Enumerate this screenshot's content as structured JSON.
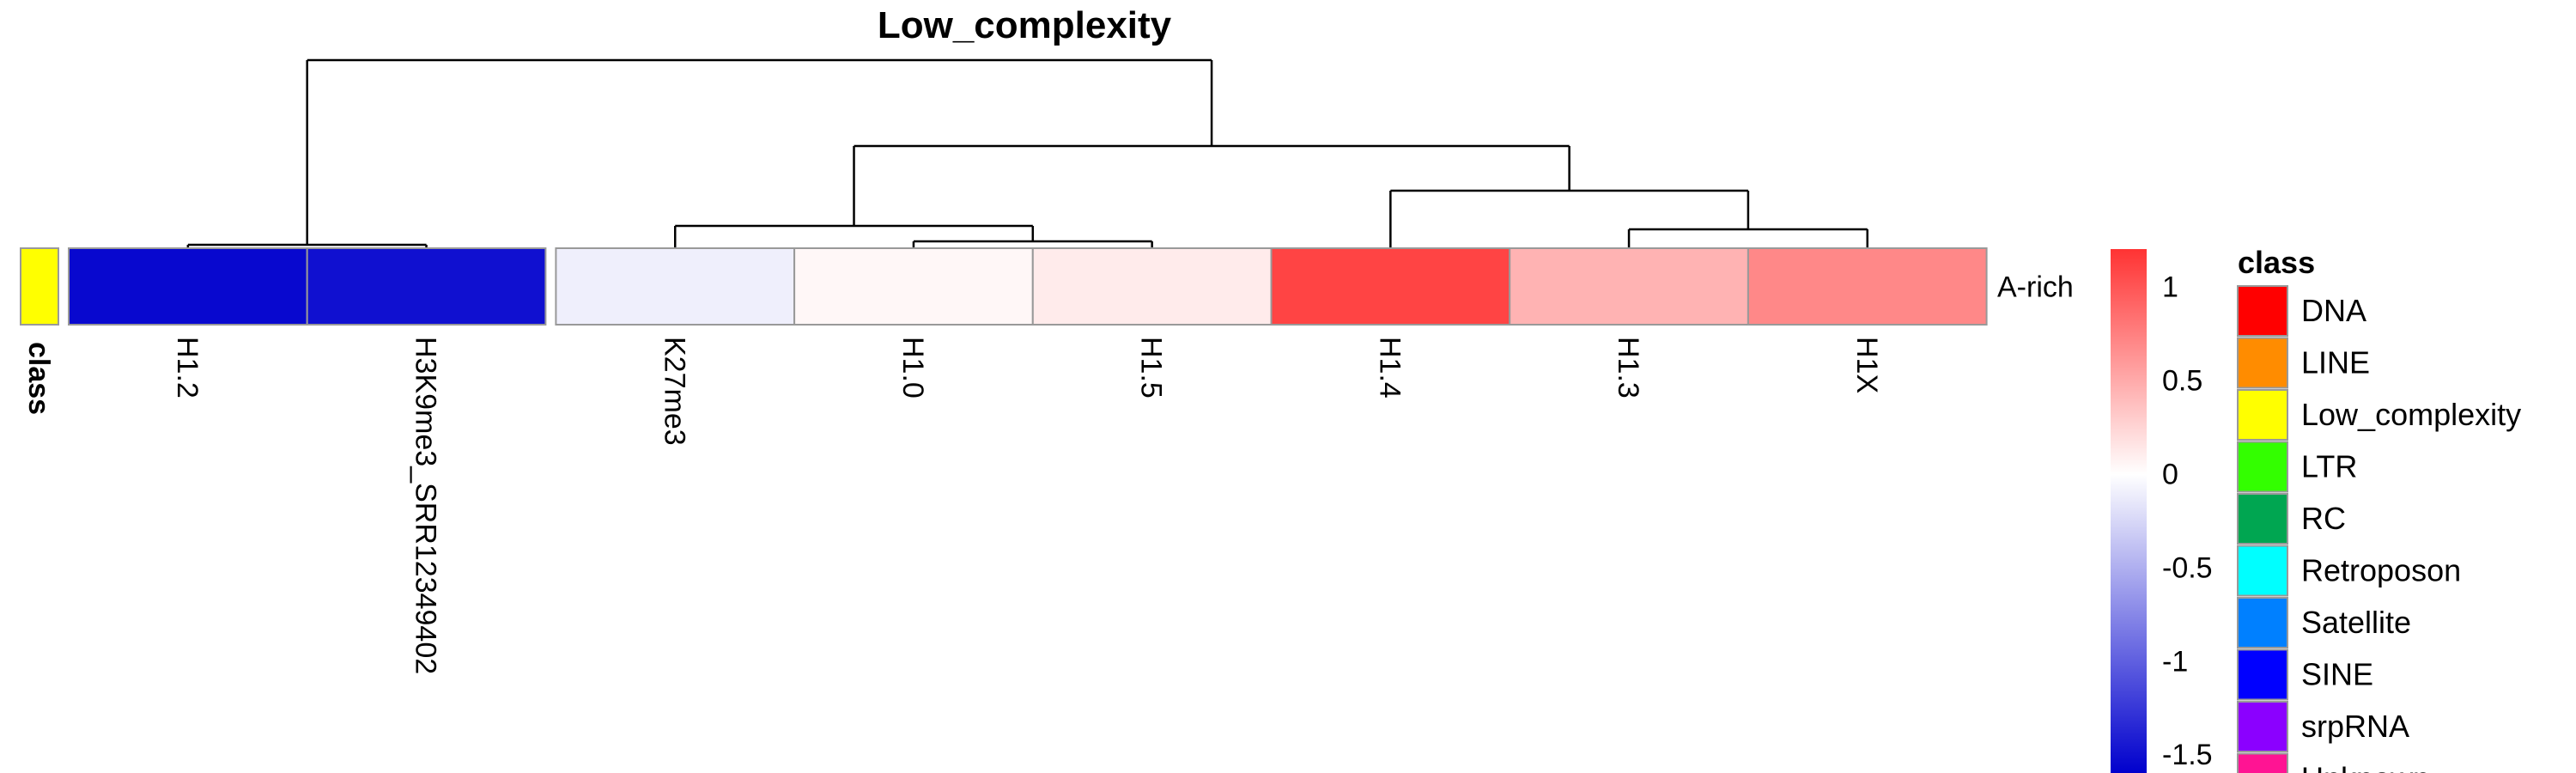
{
  "chart_data": {
    "type": "heatmap",
    "title": "Low_complexity",
    "columns": [
      "H1.2",
      "H3K9me3_SRR12349402",
      "K27me3",
      "H1.0",
      "H1.5",
      "H1.4",
      "H1.3",
      "H1X"
    ],
    "rows": [
      "A-rich"
    ],
    "values": [
      [
        -1.55,
        -1.5,
        -0.1,
        0.05,
        0.12,
        1.1,
        0.45,
        0.7
      ]
    ],
    "column_annotation_label": "class",
    "row_annotation": {
      "A-rich": "Low_complexity"
    },
    "color_scale": {
      "min": -1.6,
      "max": 1.2,
      "low_color": "#0000CD",
      "mid_color": "#FFFFFF",
      "high_color": "#FF3333",
      "ticks": [
        1,
        0.5,
        0,
        -0.5,
        -1,
        -1.5
      ],
      "tick_labels": [
        "1",
        "0.5",
        "0",
        "-0.5",
        "-1",
        "-1.5"
      ]
    },
    "legend": {
      "title": "class",
      "entries": [
        {
          "label": "DNA",
          "color": "#FF0000"
        },
        {
          "label": "LINE",
          "color": "#FF8C00"
        },
        {
          "label": "Low_complexity",
          "color": "#FFFF00"
        },
        {
          "label": "LTR",
          "color": "#33FF00"
        },
        {
          "label": "RC",
          "color": "#00A651"
        },
        {
          "label": "Retroposon",
          "color": "#00FFFF"
        },
        {
          "label": "Satellite",
          "color": "#0080FF"
        },
        {
          "label": "SINE",
          "color": "#0000FF"
        },
        {
          "label": "srpRNA",
          "color": "#8B00FF"
        },
        {
          "label": "Unknown",
          "color": "#FF1493"
        }
      ]
    },
    "dendrogram": {
      "merges": [
        [
          0,
          1
        ],
        [
          3,
          4
        ],
        [
          2,
          "m2"
        ],
        [
          6,
          7
        ],
        [
          5,
          "m4"
        ],
        [
          "m3",
          "m5"
        ],
        [
          "m1",
          "m6"
        ]
      ]
    },
    "gaps_after_columns": [
      2
    ],
    "grid": false
  }
}
